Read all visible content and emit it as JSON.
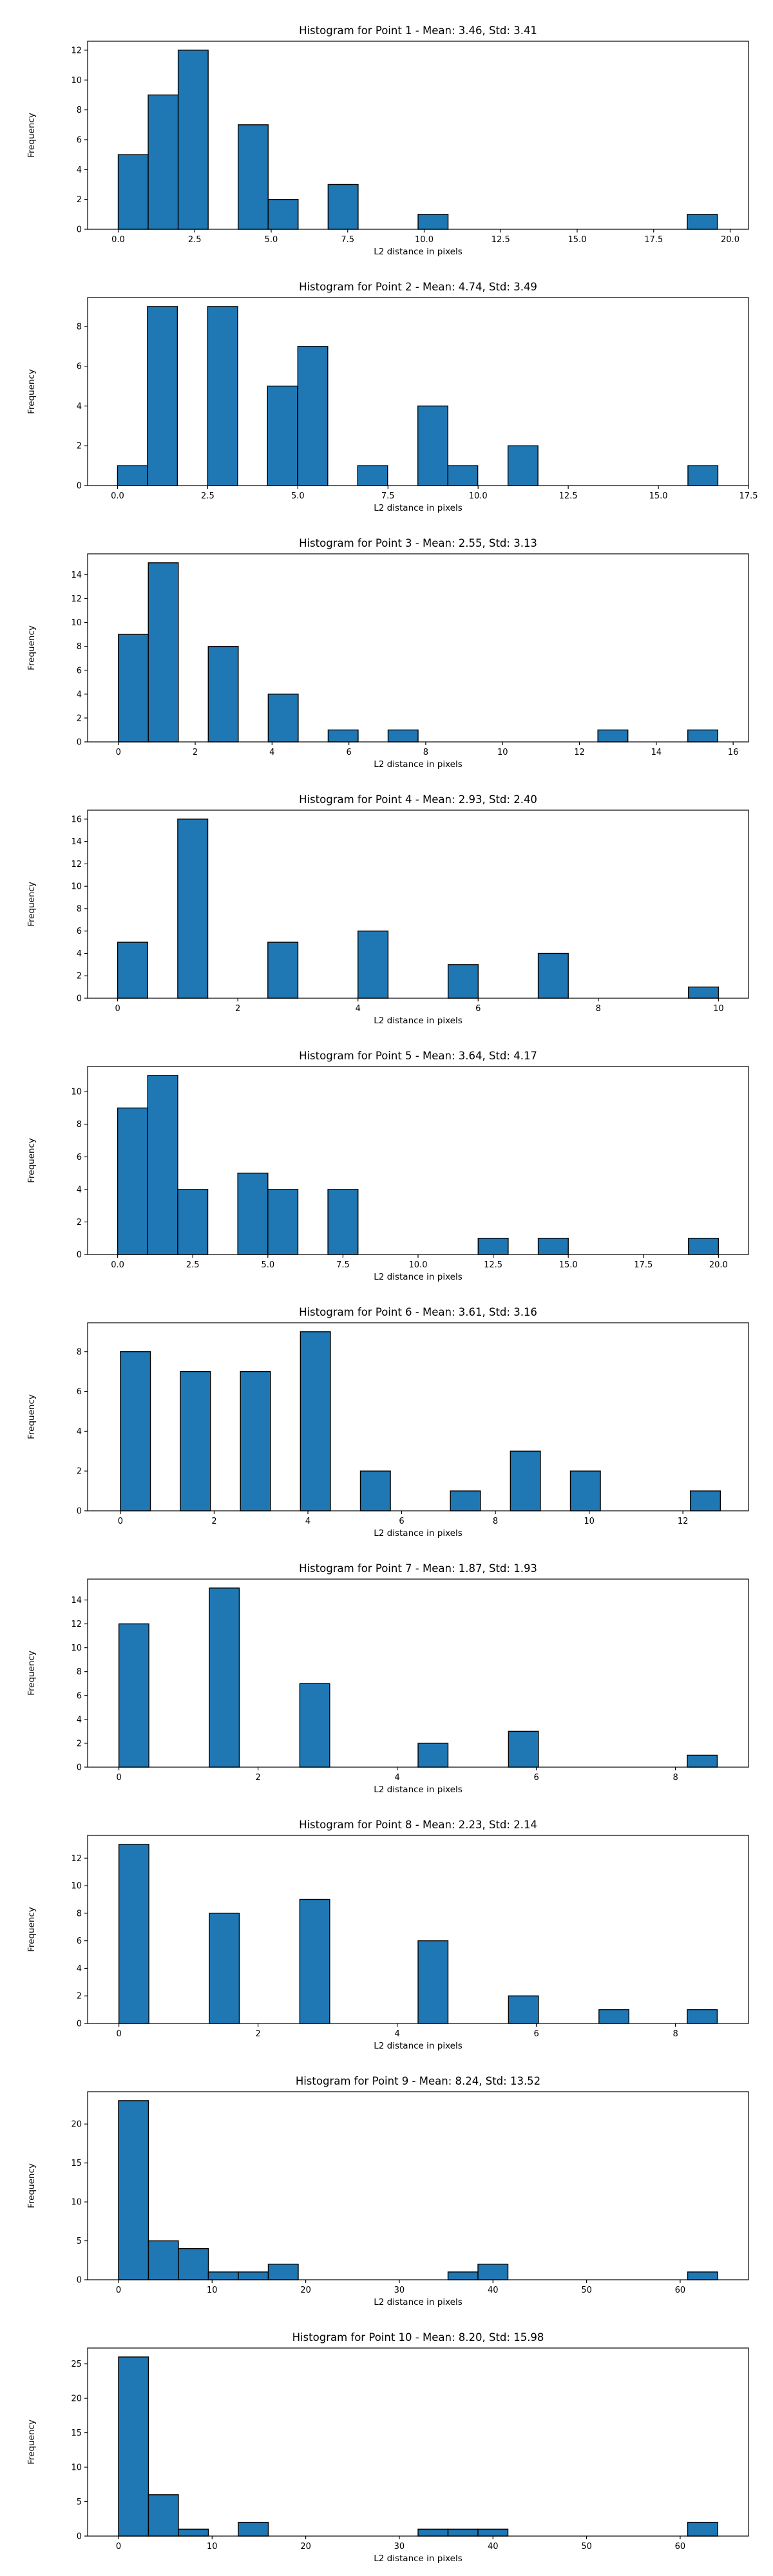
{
  "chart_data": [
    {
      "type": "bar",
      "title": "Histogram for Point 1 - Mean: 3.46, Std: 3.41",
      "xlabel": "L2 distance in pixels",
      "ylabel": "Frequency",
      "bin_width": 0.98,
      "bars": [
        {
          "x": 0.0,
          "y": 5
        },
        {
          "x": 0.98,
          "y": 9
        },
        {
          "x": 1.96,
          "y": 12
        },
        {
          "x": 3.92,
          "y": 7
        },
        {
          "x": 4.9,
          "y": 2
        },
        {
          "x": 6.86,
          "y": 3
        },
        {
          "x": 9.8,
          "y": 1
        },
        {
          "x": 18.6,
          "y": 1
        }
      ],
      "xlim": [
        -1.0,
        20.6
      ],
      "ylim": [
        0,
        12.6
      ],
      "xticks": [
        0.0,
        2.5,
        5.0,
        7.5,
        10.0,
        12.5,
        15.0,
        17.5,
        20.0
      ],
      "xtick_labels": [
        "0.0",
        "2.5",
        "5.0",
        "7.5",
        "10.0",
        "12.5",
        "15.0",
        "17.5",
        "20.0"
      ],
      "yticks": [
        0,
        2,
        4,
        6,
        8,
        10,
        12
      ],
      "ytick_labels": [
        "0",
        "2",
        "4",
        "6",
        "8",
        "10",
        "12"
      ],
      "grid": false,
      "colors": {
        "bar": "#1f77b4",
        "edge": "#000000"
      }
    },
    {
      "type": "bar",
      "title": "Histogram for Point 2 - Mean: 4.74, Std: 3.49",
      "xlabel": "L2 distance in pixels",
      "ylabel": "Frequency",
      "bin_width": 0.83,
      "bars": [
        {
          "x": 0.0,
          "y": 1
        },
        {
          "x": 0.83,
          "y": 9
        },
        {
          "x": 2.5,
          "y": 9
        },
        {
          "x": 4.16,
          "y": 5
        },
        {
          "x": 5.0,
          "y": 7
        },
        {
          "x": 6.66,
          "y": 1
        },
        {
          "x": 8.33,
          "y": 4
        },
        {
          "x": 9.16,
          "y": 1
        },
        {
          "x": 10.83,
          "y": 2
        },
        {
          "x": 15.82,
          "y": 1
        }
      ],
      "xlim": [
        -0.83,
        17.5
      ],
      "ylim": [
        0,
        9.45
      ],
      "xticks": [
        0.0,
        2.5,
        5.0,
        7.5,
        10.0,
        12.5,
        15.0,
        17.5
      ],
      "xtick_labels": [
        "0.0",
        "2.5",
        "5.0",
        "7.5",
        "10.0",
        "12.5",
        "15.0",
        "17.5"
      ],
      "yticks": [
        0,
        2,
        4,
        6,
        8
      ],
      "ytick_labels": [
        "0",
        "2",
        "4",
        "6",
        "8"
      ],
      "grid": false,
      "colors": {
        "bar": "#1f77b4",
        "edge": "#000000"
      }
    },
    {
      "type": "bar",
      "title": "Histogram for Point 3 - Mean: 2.55, Std: 3.13",
      "xlabel": "L2 distance in pixels",
      "ylabel": "Frequency",
      "bin_width": 0.78,
      "bars": [
        {
          "x": 0.0,
          "y": 9
        },
        {
          "x": 0.78,
          "y": 15
        },
        {
          "x": 2.34,
          "y": 8
        },
        {
          "x": 3.9,
          "y": 4
        },
        {
          "x": 5.46,
          "y": 1
        },
        {
          "x": 7.02,
          "y": 1
        },
        {
          "x": 12.48,
          "y": 1
        },
        {
          "x": 14.82,
          "y": 1
        }
      ],
      "xlim": [
        -0.8,
        16.4
      ],
      "ylim": [
        0,
        15.75
      ],
      "xticks": [
        0,
        2,
        4,
        6,
        8,
        10,
        12,
        14,
        16
      ],
      "xtick_labels": [
        "0",
        "2",
        "4",
        "6",
        "8",
        "10",
        "12",
        "14",
        "16"
      ],
      "yticks": [
        0,
        2,
        4,
        6,
        8,
        10,
        12,
        14
      ],
      "ytick_labels": [
        "0",
        "2",
        "4",
        "6",
        "8",
        "10",
        "12",
        "14"
      ],
      "grid": false,
      "colors": {
        "bar": "#1f77b4",
        "edge": "#000000"
      }
    },
    {
      "type": "bar",
      "title": "Histogram for Point 4 - Mean: 2.93, Std: 2.40",
      "xlabel": "L2 distance in pixels",
      "ylabel": "Frequency",
      "bin_width": 0.5,
      "bars": [
        {
          "x": 0.0,
          "y": 5
        },
        {
          "x": 1.0,
          "y": 16
        },
        {
          "x": 2.5,
          "y": 5
        },
        {
          "x": 4.0,
          "y": 6
        },
        {
          "x": 5.5,
          "y": 3
        },
        {
          "x": 7.0,
          "y": 4
        },
        {
          "x": 9.5,
          "y": 1
        }
      ],
      "xlim": [
        -0.5,
        10.5
      ],
      "ylim": [
        0,
        16.8
      ],
      "xticks": [
        0,
        2,
        4,
        6,
        8,
        10
      ],
      "xtick_labels": [
        "0",
        "2",
        "4",
        "6",
        "8",
        "10"
      ],
      "yticks": [
        0,
        2,
        4,
        6,
        8,
        10,
        12,
        14,
        16
      ],
      "ytick_labels": [
        "0",
        "2",
        "4",
        "6",
        "8",
        "10",
        "12",
        "14",
        "16"
      ],
      "grid": false,
      "colors": {
        "bar": "#1f77b4",
        "edge": "#000000"
      }
    },
    {
      "type": "bar",
      "title": "Histogram for Point 5 - Mean: 3.64, Std: 4.17",
      "xlabel": "L2 distance in pixels",
      "ylabel": "Frequency",
      "bin_width": 1.0,
      "bars": [
        {
          "x": 0.0,
          "y": 9
        },
        {
          "x": 1.0,
          "y": 11
        },
        {
          "x": 2.0,
          "y": 4
        },
        {
          "x": 4.0,
          "y": 5
        },
        {
          "x": 5.0,
          "y": 4
        },
        {
          "x": 7.0,
          "y": 4
        },
        {
          "x": 12.0,
          "y": 1
        },
        {
          "x": 14.0,
          "y": 1
        },
        {
          "x": 19.0,
          "y": 1
        }
      ],
      "xlim": [
        -1.0,
        21.0
      ],
      "ylim": [
        0,
        11.55
      ],
      "xticks": [
        0.0,
        2.5,
        5.0,
        7.5,
        10.0,
        12.5,
        15.0,
        17.5,
        20.0
      ],
      "xtick_labels": [
        "0.0",
        "2.5",
        "5.0",
        "7.5",
        "10.0",
        "12.5",
        "15.0",
        "17.5",
        "20.0"
      ],
      "yticks": [
        0,
        2,
        4,
        6,
        8,
        10
      ],
      "ytick_labels": [
        "0",
        "2",
        "4",
        "6",
        "8",
        "10"
      ],
      "grid": false,
      "colors": {
        "bar": "#1f77b4",
        "edge": "#000000"
      }
    },
    {
      "type": "bar",
      "title": "Histogram for Point 6 - Mean: 3.61, Std: 3.16",
      "xlabel": "L2 distance in pixels",
      "ylabel": "Frequency",
      "bin_width": 0.64,
      "bars": [
        {
          "x": 0.0,
          "y": 8
        },
        {
          "x": 1.28,
          "y": 7
        },
        {
          "x": 2.56,
          "y": 7
        },
        {
          "x": 3.84,
          "y": 9
        },
        {
          "x": 5.12,
          "y": 2
        },
        {
          "x": 7.04,
          "y": 1
        },
        {
          "x": 8.32,
          "y": 3
        },
        {
          "x": 9.6,
          "y": 2
        },
        {
          "x": 12.16,
          "y": 1
        }
      ],
      "xlim": [
        -0.7,
        13.4
      ],
      "ylim": [
        0,
        9.45
      ],
      "xticks": [
        0,
        2,
        4,
        6,
        8,
        10,
        12
      ],
      "xtick_labels": [
        "0",
        "2",
        "4",
        "6",
        "8",
        "10",
        "12"
      ],
      "yticks": [
        0,
        2,
        4,
        6,
        8
      ],
      "ytick_labels": [
        "0",
        "2",
        "4",
        "6",
        "8"
      ],
      "grid": false,
      "colors": {
        "bar": "#1f77b4",
        "edge": "#000000"
      }
    },
    {
      "type": "bar",
      "title": "Histogram for Point 7 - Mean: 1.87, Std: 1.93",
      "xlabel": "L2 distance in pixels",
      "ylabel": "Frequency",
      "bin_width": 0.43,
      "bars": [
        {
          "x": 0.0,
          "y": 12
        },
        {
          "x": 1.3,
          "y": 15
        },
        {
          "x": 2.6,
          "y": 7
        },
        {
          "x": 4.3,
          "y": 2
        },
        {
          "x": 5.6,
          "y": 3
        },
        {
          "x": 8.17,
          "y": 1
        }
      ],
      "xlim": [
        -0.45,
        9.05
      ],
      "ylim": [
        0,
        15.75
      ],
      "xticks": [
        0,
        2,
        4,
        6,
        8
      ],
      "xtick_labels": [
        "0",
        "2",
        "4",
        "6",
        "8"
      ],
      "yticks": [
        0,
        2,
        4,
        6,
        8,
        10,
        12,
        14
      ],
      "ytick_labels": [
        "0",
        "2",
        "4",
        "6",
        "8",
        "10",
        "12",
        "14"
      ],
      "grid": false,
      "colors": {
        "bar": "#1f77b4",
        "edge": "#000000"
      }
    },
    {
      "type": "bar",
      "title": "Histogram for Point 8 - Mean: 2.23, Std: 2.14",
      "xlabel": "L2 distance in pixels",
      "ylabel": "Frequency",
      "bin_width": 0.43,
      "bars": [
        {
          "x": 0.0,
          "y": 13
        },
        {
          "x": 1.3,
          "y": 8
        },
        {
          "x": 2.6,
          "y": 9
        },
        {
          "x": 4.3,
          "y": 6
        },
        {
          "x": 5.6,
          "y": 2
        },
        {
          "x": 6.9,
          "y": 1
        },
        {
          "x": 8.17,
          "y": 1
        }
      ],
      "xlim": [
        -0.45,
        9.05
      ],
      "ylim": [
        0,
        13.65
      ],
      "xticks": [
        0,
        2,
        4,
        6,
        8
      ],
      "xtick_labels": [
        "0",
        "2",
        "4",
        "6",
        "8"
      ],
      "yticks": [
        0,
        2,
        4,
        6,
        8,
        10,
        12
      ],
      "ytick_labels": [
        "0",
        "2",
        "4",
        "6",
        "8",
        "10",
        "12"
      ],
      "grid": false,
      "colors": {
        "bar": "#1f77b4",
        "edge": "#000000"
      }
    },
    {
      "type": "bar",
      "title": "Histogram for Point 9 - Mean: 8.24, Std: 13.52",
      "xlabel": "L2 distance in pixels",
      "ylabel": "Frequency",
      "bin_width": 3.2,
      "bars": [
        {
          "x": 0.0,
          "y": 23
        },
        {
          "x": 3.2,
          "y": 5
        },
        {
          "x": 6.4,
          "y": 4
        },
        {
          "x": 9.6,
          "y": 1
        },
        {
          "x": 12.8,
          "y": 1
        },
        {
          "x": 16.0,
          "y": 2
        },
        {
          "x": 35.2,
          "y": 1
        },
        {
          "x": 38.4,
          "y": 2
        },
        {
          "x": 60.8,
          "y": 1
        }
      ],
      "xlim": [
        -3.3,
        67.3
      ],
      "ylim": [
        0,
        24.15
      ],
      "xticks": [
        0,
        10,
        20,
        30,
        40,
        50,
        60
      ],
      "xtick_labels": [
        "0",
        "10",
        "20",
        "30",
        "40",
        "50",
        "60"
      ],
      "yticks": [
        0,
        5,
        10,
        15,
        20
      ],
      "ytick_labels": [
        "0",
        "5",
        "10",
        "15",
        "20"
      ],
      "grid": false,
      "colors": {
        "bar": "#1f77b4",
        "edge": "#000000"
      }
    },
    {
      "type": "bar",
      "title": "Histogram for Point 10 - Mean: 8.20, Std: 15.98",
      "xlabel": "L2 distance in pixels",
      "ylabel": "Frequency",
      "bin_width": 3.2,
      "bars": [
        {
          "x": 0.0,
          "y": 26
        },
        {
          "x": 3.2,
          "y": 6
        },
        {
          "x": 6.4,
          "y": 1
        },
        {
          "x": 12.8,
          "y": 2
        },
        {
          "x": 32.0,
          "y": 1
        },
        {
          "x": 35.2,
          "y": 1
        },
        {
          "x": 38.4,
          "y": 1
        },
        {
          "x": 60.8,
          "y": 2
        }
      ],
      "xlim": [
        -3.3,
        67.3
      ],
      "ylim": [
        0,
        27.3
      ],
      "xticks": [
        0,
        10,
        20,
        30,
        40,
        50,
        60
      ],
      "xtick_labels": [
        "0",
        "10",
        "20",
        "30",
        "40",
        "50",
        "60"
      ],
      "yticks": [
        0,
        5,
        10,
        15,
        20,
        25
      ],
      "ytick_labels": [
        "0",
        "5",
        "10",
        "15",
        "20",
        "25"
      ],
      "grid": false,
      "colors": {
        "bar": "#1f77b4",
        "edge": "#000000"
      }
    }
  ]
}
